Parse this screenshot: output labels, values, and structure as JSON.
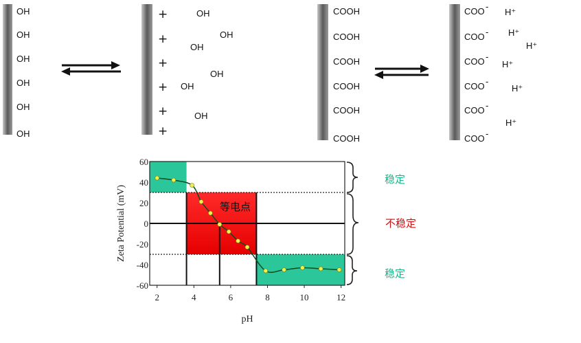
{
  "colors": {
    "stable_region": "#2bc69a",
    "unstable_region": "#ee1111",
    "stable_text": "#1bb58a",
    "unstable_text": "#cc1111",
    "point_fill": "#f0f050",
    "plate": "#6e6e6e"
  },
  "surfaces": {
    "basic_neutral": {
      "groups": [
        "OH",
        "OH",
        "OH",
        "OH",
        "OH",
        "OH"
      ]
    },
    "basic_charged": {
      "plus": [
        "+",
        "+",
        "+",
        "+",
        "+",
        "+"
      ],
      "free": [
        "OH",
        "OH",
        "OH",
        "OH",
        "OH",
        "OH"
      ]
    },
    "acid_neutral": {
      "groups": [
        "COOH",
        "COOH",
        "COOH",
        "COOH",
        "COOH",
        "COOH"
      ]
    },
    "acid_charged": {
      "groups": [
        "COO",
        "COO",
        "COO",
        "COO",
        "COO",
        "COO"
      ],
      "ions": [
        "H⁺",
        "H⁺",
        "H⁺",
        "H⁺",
        "H⁺",
        "H⁺"
      ]
    }
  },
  "chart_data": {
    "type": "line",
    "xlabel": "pH",
    "ylabel": "Zeta Potential (mV)",
    "xlim": [
      1.6,
      12.2
    ],
    "ylim": [
      -60,
      60
    ],
    "xticks": [
      "2",
      "4",
      "6",
      "8",
      "10",
      "12"
    ],
    "yticks": [
      "60",
      "40",
      "20",
      "0",
      "-20",
      "-40",
      "-60"
    ],
    "points": {
      "x": [
        2.0,
        2.9,
        3.9,
        4.4,
        4.9,
        5.4,
        5.9,
        6.4,
        6.9,
        7.9,
        8.9,
        9.9,
        10.9,
        11.9
      ],
      "y": [
        44,
        42,
        37,
        21,
        10,
        -1,
        -8,
        -17,
        -23,
        -46,
        -45,
        -43,
        -44,
        -45
      ]
    },
    "regions": [
      {
        "x": [
          1.6,
          3.6
        ],
        "y": [
          30,
          60
        ],
        "state": "stable"
      },
      {
        "x": [
          3.6,
          7.4
        ],
        "y": [
          -30,
          30
        ],
        "state": "unstable"
      },
      {
        "x": [
          7.4,
          12.2
        ],
        "y": [
          -60,
          -30
        ],
        "state": "stable"
      }
    ],
    "hlines_dotted": [
      30,
      -30
    ],
    "hline_solid": 0,
    "vlines": [
      3.6,
      5.4,
      7.4
    ],
    "annotations": {
      "isoelectric": "等电点",
      "stable_top": "稳定",
      "unstable": "不稳定",
      "stable_bottom": "稳定"
    }
  }
}
